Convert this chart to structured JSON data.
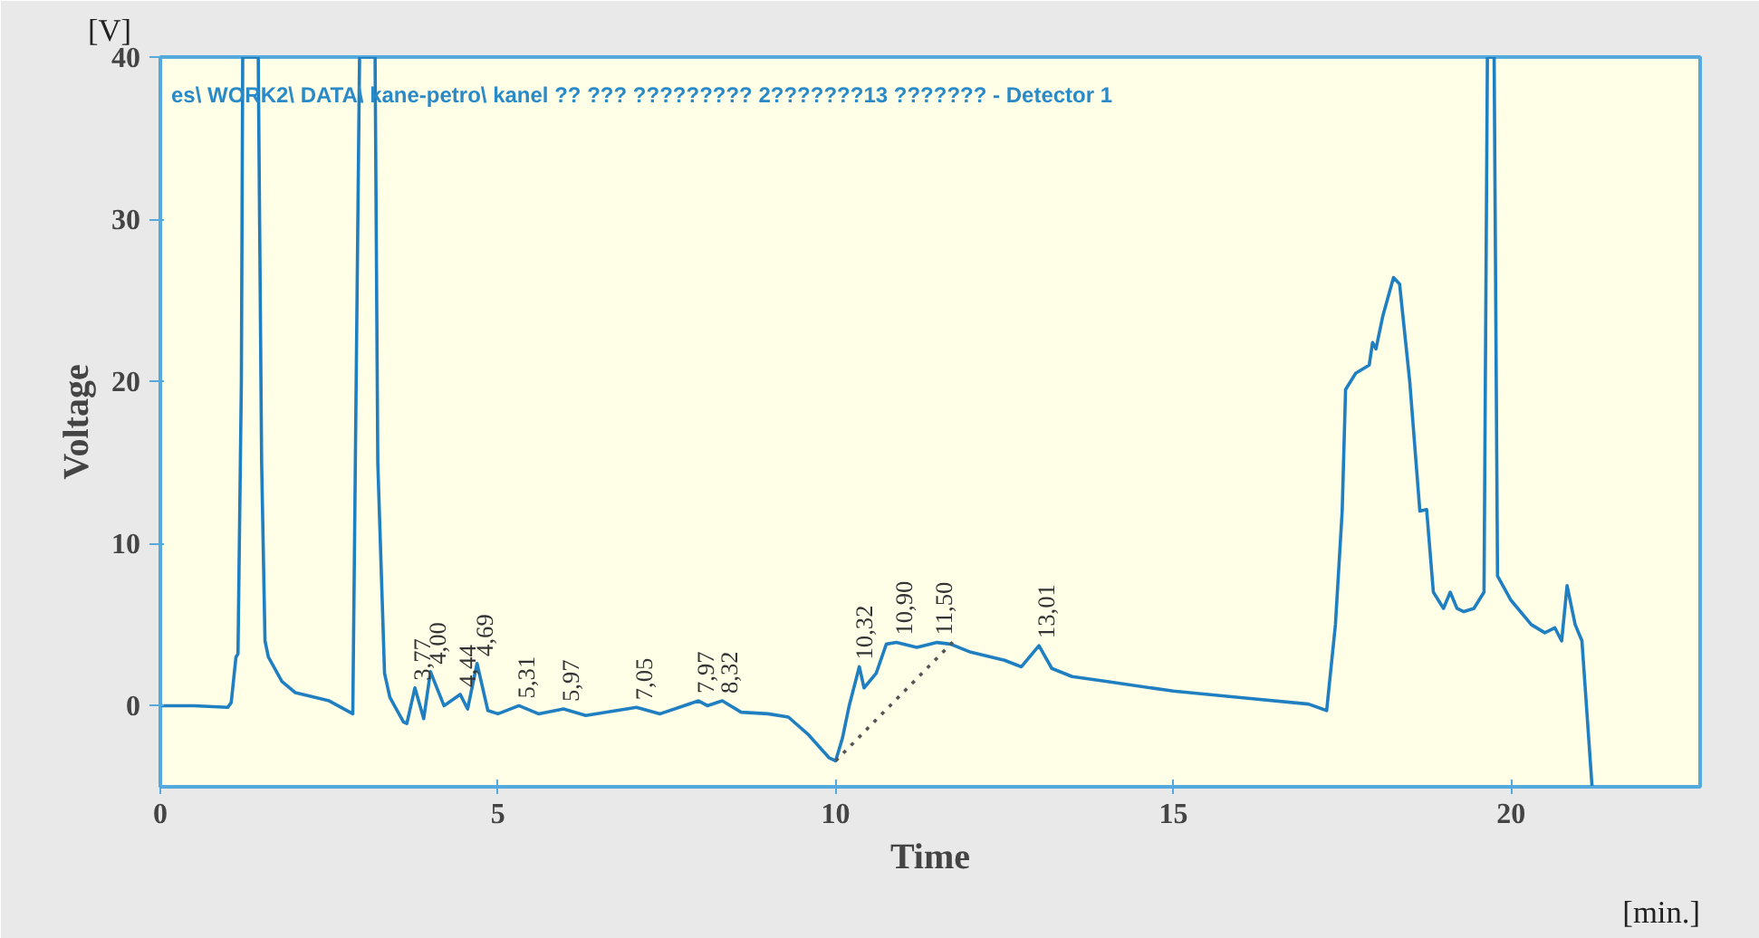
{
  "chart_data": {
    "type": "line",
    "title": "es\\ WORK2\\ DATA\\ kane-petro\\ kanel ?? ??? ????????? 2???????13 ??????? - Detector 1",
    "xlabel": "Time",
    "ylabel": "Voltage",
    "xlim": [
      0,
      22.8
    ],
    "ylim": [
      -5,
      40
    ],
    "xticks": [
      0,
      5,
      10,
      15,
      20
    ],
    "yticks": [
      0,
      10,
      20,
      30,
      40
    ],
    "grid": false,
    "marker": "none",
    "series": [
      {
        "color": "#1f7fc0",
        "line_style": "solid",
        "x": [
          0,
          0.5,
          1.0,
          1.05,
          1.12,
          1.15,
          1.2,
          1.22,
          1.45,
          1.5,
          1.55,
          1.6,
          1.8,
          2.0,
          2.5,
          2.85,
          2.9,
          2.95,
          3.18,
          3.22,
          3.32,
          3.4,
          3.6,
          3.65,
          3.77,
          3.9,
          4.0,
          4.2,
          4.44,
          4.55,
          4.69,
          4.85,
          5.0,
          5.31,
          5.6,
          5.97,
          6.3,
          7.05,
          7.4,
          7.97,
          8.1,
          8.32,
          8.6,
          9.0,
          9.3,
          9.6,
          9.9,
          10.0,
          10.1,
          10.2,
          10.35,
          10.42,
          10.6,
          10.75,
          10.9,
          11.2,
          11.5,
          11.7,
          12.0,
          12.5,
          12.75,
          13.01,
          13.2,
          13.5,
          14.0,
          15.0,
          16.0,
          17.0,
          17.27,
          17.4,
          17.5,
          17.55,
          17.7,
          17.9,
          17.95,
          18.0,
          18.1,
          18.26,
          18.35,
          18.5,
          18.65,
          18.75,
          18.85,
          19.0,
          19.1,
          19.2,
          19.3,
          19.45,
          19.6,
          19.65,
          19.75,
          19.8,
          20.0,
          20.3,
          20.5,
          20.65,
          20.75,
          20.83,
          20.95,
          21.05,
          21.15,
          21.2
        ],
        "values": [
          0,
          0,
          -0.1,
          0.2,
          3.0,
          3.2,
          20,
          40,
          40,
          15,
          4,
          3,
          1.5,
          0.8,
          0.3,
          -0.5,
          20,
          40,
          40,
          15,
          2,
          0.5,
          -1.0,
          -1.1,
          1.1,
          -0.8,
          2.1,
          0,
          0.7,
          -0.2,
          2.6,
          -0.3,
          -0.5,
          0,
          -0.5,
          -0.2,
          -0.6,
          -0.1,
          -0.5,
          0.3,
          0,
          0.3,
          -0.4,
          -0.5,
          -0.7,
          -1.8,
          -3.2,
          -3.4,
          -2.0,
          0,
          2.4,
          1.1,
          2.0,
          3.8,
          3.9,
          3.6,
          3.9,
          3.8,
          3.3,
          2.8,
          2.4,
          3.7,
          2.3,
          1.8,
          1.5,
          0.9,
          0.5,
          0.1,
          -0.3,
          5,
          12,
          19.5,
          20.5,
          21,
          22.4,
          22,
          24,
          26.4,
          26,
          20,
          12,
          12.1,
          7,
          6,
          7,
          6,
          5.8,
          6,
          7,
          40,
          40,
          8,
          6.5,
          5,
          4.5,
          4.8,
          4,
          7.4,
          5,
          4,
          -2,
          -5
        ]
      },
      {
        "color": "#555555",
        "line_style": "dotted",
        "x": [
          10.0,
          11.8
        ],
        "values": [
          -3.4,
          4.2
        ]
      }
    ],
    "annotations": [
      "[V]",
      "[min.]",
      {
        "text": "3,77",
        "x": 3.77,
        "y": 1.1
      },
      {
        "text": "4,00",
        "x": 4.0,
        "y": 2.1
      },
      {
        "text": "4,44",
        "x": 4.44,
        "y": 0.7
      },
      {
        "text": "4,69",
        "x": 4.69,
        "y": 2.6
      },
      {
        "text": "5,31",
        "x": 5.31,
        "y": 0
      },
      {
        "text": "5,97",
        "x": 5.97,
        "y": -0.2
      },
      {
        "text": "7,05",
        "x": 7.05,
        "y": -0.1
      },
      {
        "text": "7,97",
        "x": 7.97,
        "y": 0.3
      },
      {
        "text": "8,32",
        "x": 8.32,
        "y": 0.3
      },
      {
        "text": "10,32",
        "x": 10.32,
        "y": 2.4
      },
      {
        "text": "10,90",
        "x": 10.9,
        "y": 3.9
      },
      {
        "text": "11,50",
        "x": 11.5,
        "y": 3.9
      },
      {
        "text": "13,01",
        "x": 13.01,
        "y": 3.7
      }
    ]
  }
}
